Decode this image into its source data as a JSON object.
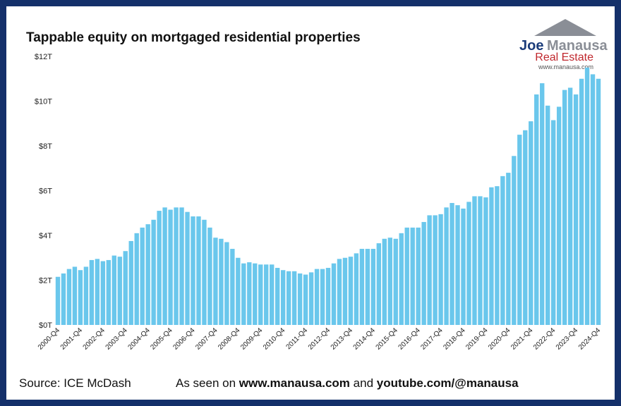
{
  "chart_data": {
    "type": "bar",
    "title": "Tappable equity on mortgaged residential properties",
    "categories": [
      "2000-Q4",
      null,
      null,
      null,
      "2001-Q4",
      null,
      null,
      null,
      "2002-Q4",
      null,
      null,
      null,
      "2003-Q4",
      null,
      null,
      null,
      "2004-Q4",
      null,
      null,
      null,
      "2005-Q4",
      null,
      null,
      null,
      "2006-Q4",
      null,
      null,
      null,
      "2007-Q4",
      null,
      null,
      null,
      "2008-Q4",
      null,
      null,
      null,
      "2009-Q4",
      null,
      null,
      null,
      "2010-Q4",
      null,
      null,
      null,
      "2011-Q4",
      null,
      null,
      null,
      "2012-Q4",
      null,
      null,
      null,
      "2013-Q4",
      null,
      null,
      null,
      "2014-Q4",
      null,
      null,
      null,
      "2015-Q4",
      null,
      null,
      null,
      "2016-Q4",
      null,
      null,
      null,
      "2017-Q4",
      null,
      null,
      null,
      "2018-Q4",
      null,
      null,
      null,
      "2019-Q4",
      null,
      null,
      null,
      "2020-Q4",
      null,
      null,
      null,
      "2021-Q4",
      null,
      null,
      null,
      "2022-Q4",
      null,
      null,
      null,
      "2023-Q4",
      null,
      null,
      null,
      "2024-Q4"
    ],
    "values": [
      2.15,
      2.3,
      2.5,
      2.6,
      2.45,
      2.6,
      2.9,
      2.95,
      2.85,
      2.9,
      3.1,
      3.05,
      3.3,
      3.75,
      4.1,
      4.35,
      4.5,
      4.7,
      5.1,
      5.25,
      5.15,
      5.25,
      5.25,
      5.05,
      4.85,
      4.85,
      4.7,
      4.35,
      3.9,
      3.85,
      3.7,
      3.4,
      3.0,
      2.75,
      2.8,
      2.75,
      2.7,
      2.7,
      2.7,
      2.55,
      2.45,
      2.4,
      2.4,
      2.3,
      2.25,
      2.35,
      2.5,
      2.5,
      2.55,
      2.75,
      2.95,
      3.0,
      3.05,
      3.2,
      3.4,
      3.4,
      3.4,
      3.65,
      3.85,
      3.9,
      3.85,
      4.1,
      4.35,
      4.35,
      4.35,
      4.6,
      4.9,
      4.9,
      4.95,
      5.25,
      5.45,
      5.35,
      5.2,
      5.5,
      5.75,
      5.75,
      5.7,
      6.15,
      6.2,
      6.65,
      6.8,
      7.55,
      8.5,
      8.7,
      9.1,
      10.3,
      10.8,
      9.8,
      9.15,
      9.75,
      10.5,
      10.6,
      10.3,
      11.0,
      11.5,
      11.2,
      11.0
    ],
    "color": "#6ac7ec",
    "ylim": [
      0,
      12
    ],
    "yticks": [
      {
        "value": 0,
        "label": "$0T"
      },
      {
        "value": 2,
        "label": "$2T"
      },
      {
        "value": 4,
        "label": "$4T"
      },
      {
        "value": 6,
        "label": "$6T"
      },
      {
        "value": 8,
        "label": "$8T"
      },
      {
        "value": 10,
        "label": "$10T"
      },
      {
        "value": 12,
        "label": "$12T"
      }
    ],
    "grid": false
  },
  "logo": {
    "first": "Joe",
    "last": "Manausa",
    "line2": "Real Estate",
    "url": "www.manausa.com"
  },
  "footer": {
    "source": "Source: ICE McDash",
    "seen": "As seen on ",
    "site": "www.manausa.com",
    "and": " and ",
    "youtube": "youtube.com/@manausa"
  }
}
